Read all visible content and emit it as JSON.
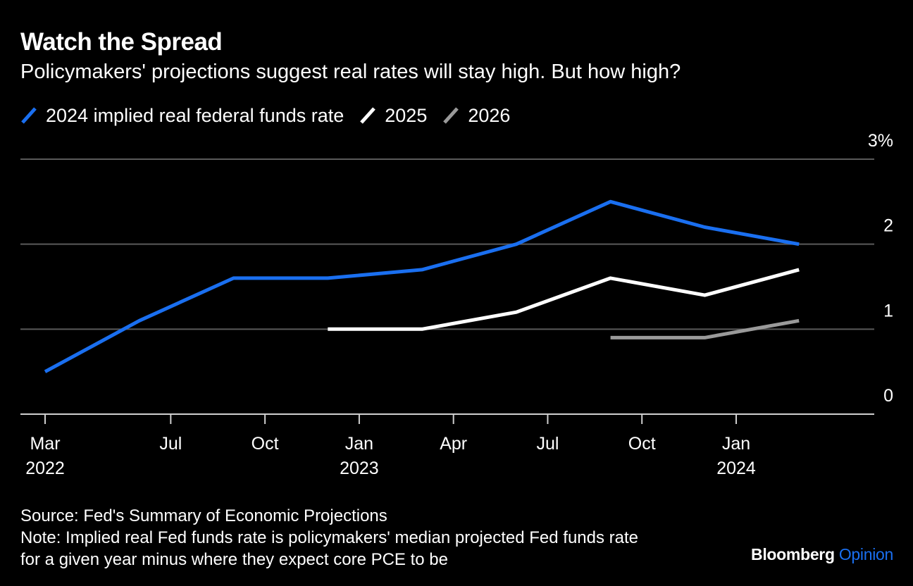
{
  "header": {
    "title": "Watch the Spread",
    "subtitle": "Policymakers' projections suggest real rates will stay high. But how high?"
  },
  "legend": [
    {
      "label": "2024 implied real federal funds rate",
      "color": "#1a6ff0"
    },
    {
      "label": "2025",
      "color": "#ffffff"
    },
    {
      "label": "2026",
      "color": "#9a9a9a"
    }
  ],
  "chart_data": {
    "type": "line",
    "x_ticks": [
      {
        "label": "Mar",
        "year": "2022",
        "date": "2022-03"
      },
      {
        "label": "Jul",
        "year": "",
        "date": "2022-07"
      },
      {
        "label": "Oct",
        "year": "",
        "date": "2022-10"
      },
      {
        "label": "Jan",
        "year": "2023",
        "date": "2023-01"
      },
      {
        "label": "Apr",
        "year": "",
        "date": "2023-04"
      },
      {
        "label": "Jul",
        "year": "",
        "date": "2023-07"
      },
      {
        "label": "Oct",
        "year": "",
        "date": "2023-10"
      },
      {
        "label": "Jan",
        "year": "2024",
        "date": "2024-01"
      }
    ],
    "y_ticks": [
      {
        "value": 3,
        "label": "3%"
      },
      {
        "value": 2,
        "label": "2"
      },
      {
        "value": 1,
        "label": "1"
      },
      {
        "value": 0,
        "label": "0"
      }
    ],
    "ylim": [
      0,
      3
    ],
    "y_axis_position": "right",
    "grid": true,
    "series": [
      {
        "name": "2024 implied real federal funds rate",
        "color": "#1a6ff0",
        "points": [
          {
            "x": "2022-03",
            "y": 0.5
          },
          {
            "x": "2022-06",
            "y": 1.1
          },
          {
            "x": "2022-09",
            "y": 1.6
          },
          {
            "x": "2022-12",
            "y": 1.6
          },
          {
            "x": "2023-03",
            "y": 1.7
          },
          {
            "x": "2023-06",
            "y": 2.0
          },
          {
            "x": "2023-09",
            "y": 2.5
          },
          {
            "x": "2023-12",
            "y": 2.2
          },
          {
            "x": "2024-03",
            "y": 2.0
          }
        ]
      },
      {
        "name": "2025",
        "color": "#ffffff",
        "points": [
          {
            "x": "2022-12",
            "y": 1.0
          },
          {
            "x": "2023-03",
            "y": 1.0
          },
          {
            "x": "2023-06",
            "y": 1.2
          },
          {
            "x": "2023-09",
            "y": 1.6
          },
          {
            "x": "2023-12",
            "y": 1.4
          },
          {
            "x": "2024-03",
            "y": 1.7
          }
        ]
      },
      {
        "name": "2026",
        "color": "#9a9a9a",
        "points": [
          {
            "x": "2023-09",
            "y": 0.9
          },
          {
            "x": "2023-12",
            "y": 0.9
          },
          {
            "x": "2024-03",
            "y": 1.1
          }
        ]
      }
    ]
  },
  "footer": {
    "source": "Source: Fed's Summary of Economic Projections",
    "note_line1": "Note: Implied real Fed funds rate is policymakers' median projected Fed funds rate",
    "note_line2": "for a given year minus where they expect core PCE to be",
    "brand_main": "Bloomberg",
    "brand_sub": "Opinion",
    "brand_sub_color": "#1a6ff0"
  }
}
